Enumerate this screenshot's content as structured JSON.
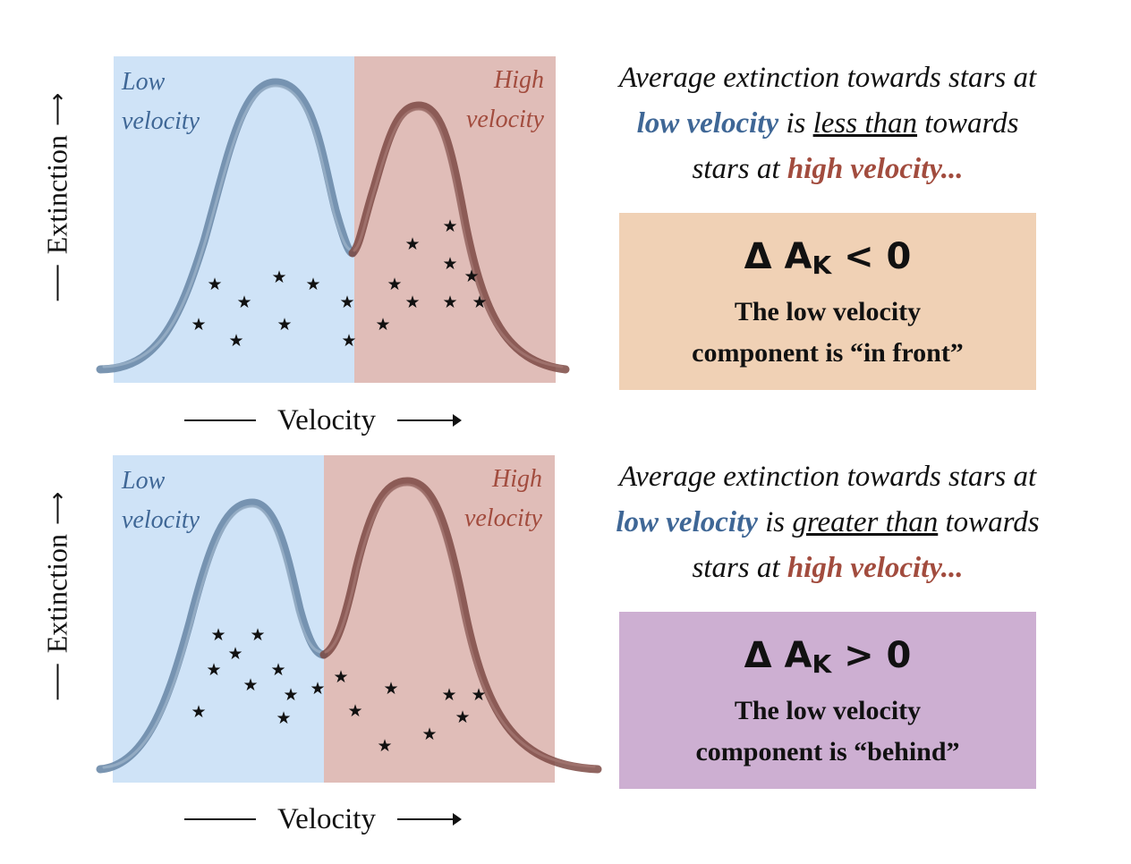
{
  "colors": {
    "low_region": "#cfe3f7",
    "high_region": "#e0bdb8",
    "low_curve": "#6b8aa8",
    "high_curve": "#7d4a44",
    "low_text": "#3f6796",
    "high_text": "#a24c3e",
    "box_in_front": "#f0d1b5",
    "box_behind": "#cdafd2"
  },
  "panels": [
    {
      "axis": {
        "y_label": "Extinction",
        "x_label": "Velocity"
      },
      "regions": {
        "low_label_line1": "Low",
        "low_label_line2": "velocity",
        "high_label_line1": "High",
        "high_label_line2": "velocity"
      },
      "sentence": {
        "part1": "Average extinction towards stars at",
        "low": "low velocity",
        "is": " is ",
        "comparison": "less than",
        "towards": " towards",
        "part2": "stars at ",
        "high": "high velocity..."
      },
      "result": {
        "delta": "Δ A",
        "subscript": "K",
        "relation": " < 0",
        "conclusion_line1": "The low velocity",
        "conclusion_line2": "component is “in front”"
      },
      "star_icon": "star-icon"
    },
    {
      "axis": {
        "y_label": "Extinction",
        "x_label": "Velocity"
      },
      "regions": {
        "low_label_line1": "Low",
        "low_label_line2": "velocity",
        "high_label_line1": "High",
        "high_label_line2": "velocity"
      },
      "sentence": {
        "part1": "Average extinction towards stars at",
        "low": "low velocity",
        "is": " is ",
        "comparison": "greater than",
        "towards": " towards",
        "part2": "stars at ",
        "high": "high velocity..."
      },
      "result": {
        "delta": "Δ A",
        "subscript": "K",
        "relation": " > 0",
        "conclusion_line1": "The low velocity",
        "conclusion_line2": "component is “behind”"
      },
      "star_icon": "star-icon"
    }
  ]
}
